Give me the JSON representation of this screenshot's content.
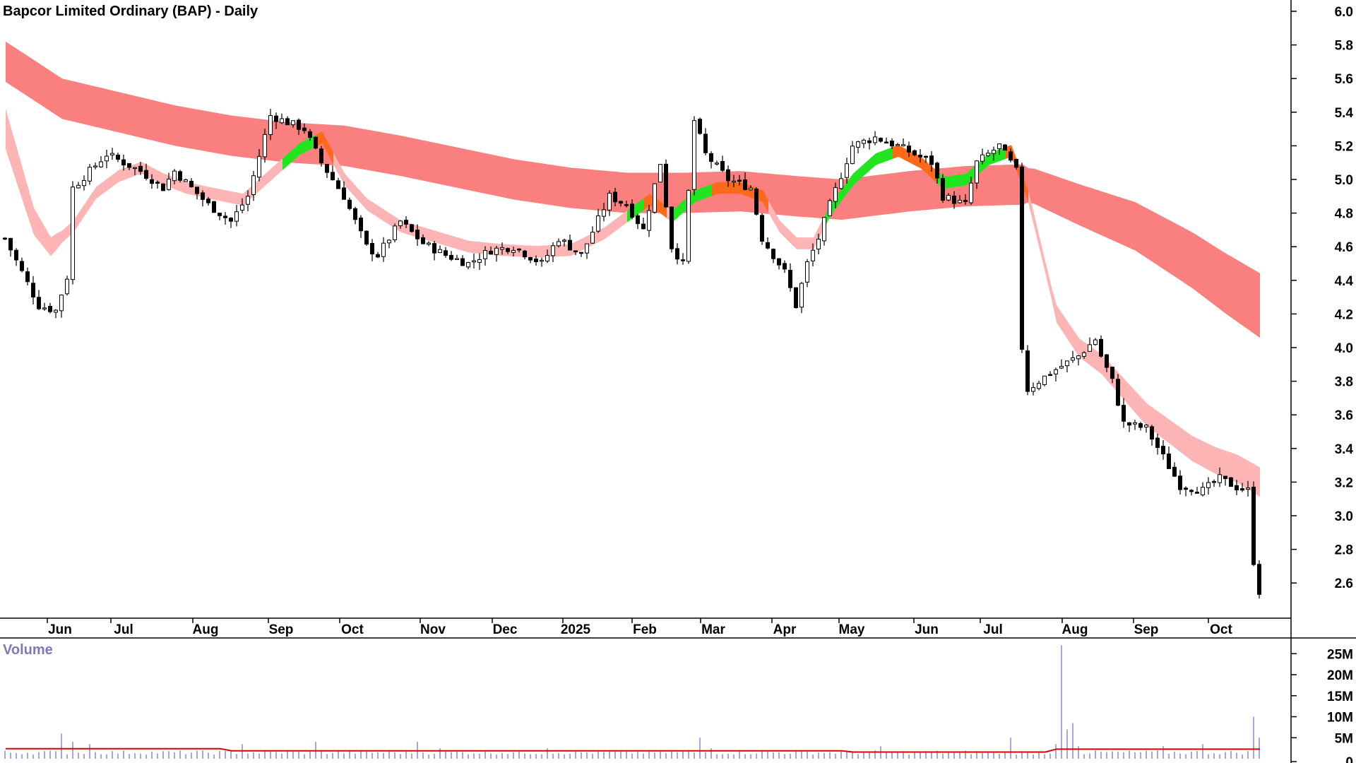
{
  "chart_data": {
    "type": "candlestick",
    "title": "Bapcor Limited Ordinary (BAP) - Daily",
    "y_axis": {
      "position": "right",
      "ticks": [
        "6.0",
        "5.8",
        "5.6",
        "5.4",
        "5.2",
        "5.0",
        "4.8",
        "4.6",
        "4.4",
        "4.2",
        "4.0",
        "3.8",
        "3.6",
        "3.4",
        "3.2",
        "3.0",
        "2.8",
        "2.6"
      ],
      "ylim": [
        2.45,
        6.05
      ]
    },
    "x_axis": {
      "ticks": [
        "Jun",
        "Jul",
        "Aug",
        "Sep",
        "Oct",
        "Nov",
        "Dec",
        "2025",
        "Feb",
        "Mar",
        "Apr",
        "May",
        "Jun",
        "Jul",
        "Aug",
        "Sep",
        "Oct"
      ]
    },
    "close_path": [
      [
        0,
        4.65
      ],
      [
        6,
        4.25
      ],
      [
        9,
        4.22
      ],
      [
        11,
        4.42
      ],
      [
        12,
        4.95
      ],
      [
        18,
        5.15
      ],
      [
        24,
        5.05
      ],
      [
        28,
        4.95
      ],
      [
        30,
        5.05
      ],
      [
        36,
        4.85
      ],
      [
        40,
        4.75
      ],
      [
        43,
        4.9
      ],
      [
        47,
        5.38
      ],
      [
        53,
        5.3
      ],
      [
        56,
        5.1
      ],
      [
        60,
        4.9
      ],
      [
        64,
        4.6
      ],
      [
        66,
        4.55
      ],
      [
        70,
        4.75
      ],
      [
        74,
        4.62
      ],
      [
        78,
        4.55
      ],
      [
        82,
        4.5
      ],
      [
        86,
        4.58
      ],
      [
        90,
        4.6
      ],
      [
        95,
        4.5
      ],
      [
        98,
        4.65
      ],
      [
        102,
        4.55
      ],
      [
        107,
        4.9
      ],
      [
        110,
        4.85
      ],
      [
        113,
        4.7
      ],
      [
        116,
        5.1
      ],
      [
        118,
        4.6
      ],
      [
        120,
        4.5
      ],
      [
        122,
        5.35
      ],
      [
        124,
        5.15
      ],
      [
        128,
        5.0
      ],
      [
        132,
        4.95
      ],
      [
        134,
        4.65
      ],
      [
        138,
        4.45
      ],
      [
        140,
        4.25
      ],
      [
        142,
        4.5
      ],
      [
        144,
        4.65
      ],
      [
        146,
        4.85
      ],
      [
        150,
        5.2
      ],
      [
        154,
        5.25
      ],
      [
        158,
        5.2
      ],
      [
        164,
        5.1
      ],
      [
        166,
        4.9
      ],
      [
        170,
        4.85
      ],
      [
        172,
        5.1
      ],
      [
        176,
        5.2
      ],
      [
        179,
        5.05
      ],
      [
        180,
        4.0
      ],
      [
        181,
        3.75
      ],
      [
        185,
        3.85
      ],
      [
        190,
        3.95
      ],
      [
        193,
        4.05
      ],
      [
        194,
        3.95
      ],
      [
        196,
        3.8
      ],
      [
        198,
        3.55
      ],
      [
        202,
        3.52
      ],
      [
        205,
        3.35
      ],
      [
        208,
        3.18
      ],
      [
        212,
        3.15
      ],
      [
        215,
        3.22
      ],
      [
        218,
        3.17
      ],
      [
        220,
        3.15
      ],
      [
        221,
        2.73
      ],
      [
        222,
        2.55
      ]
    ],
    "ma_short": [
      [
        0,
        5.3
      ],
      [
        5,
        4.75
      ],
      [
        8,
        4.6
      ],
      [
        12,
        4.72
      ],
      [
        16,
        4.92
      ],
      [
        20,
        5.02
      ],
      [
        24,
        5.07
      ],
      [
        28,
        5.0
      ],
      [
        32,
        4.95
      ],
      [
        36,
        4.92
      ],
      [
        42,
        4.88
      ],
      [
        46,
        5.0
      ],
      [
        52,
        5.18
      ],
      [
        56,
        5.25
      ],
      [
        60,
        5.0
      ],
      [
        64,
        4.85
      ],
      [
        70,
        4.72
      ],
      [
        76,
        4.66
      ],
      [
        82,
        4.6
      ],
      [
        88,
        4.58
      ],
      [
        94,
        4.57
      ],
      [
        100,
        4.58
      ],
      [
        106,
        4.68
      ],
      [
        110,
        4.78
      ],
      [
        114,
        4.88
      ],
      [
        118,
        4.78
      ],
      [
        122,
        4.9
      ],
      [
        126,
        4.95
      ],
      [
        130,
        4.95
      ],
      [
        134,
        4.9
      ],
      [
        137,
        4.72
      ],
      [
        140,
        4.62
      ],
      [
        143,
        4.62
      ],
      [
        146,
        4.82
      ],
      [
        150,
        5.0
      ],
      [
        154,
        5.12
      ],
      [
        158,
        5.17
      ],
      [
        162,
        5.1
      ],
      [
        166,
        4.98
      ],
      [
        170,
        5.0
      ],
      [
        174,
        5.12
      ],
      [
        178,
        5.17
      ],
      [
        181,
        4.9
      ],
      [
        186,
        4.2
      ],
      [
        190,
        4.0
      ],
      [
        194,
        3.9
      ],
      [
        198,
        3.75
      ],
      [
        202,
        3.6
      ],
      [
        206,
        3.5
      ],
      [
        210,
        3.4
      ],
      [
        214,
        3.33
      ],
      [
        218,
        3.28
      ],
      [
        222,
        3.2
      ]
    ],
    "ma_long": [
      [
        0,
        5.7
      ],
      [
        10,
        5.48
      ],
      [
        20,
        5.4
      ],
      [
        30,
        5.32
      ],
      [
        40,
        5.26
      ],
      [
        50,
        5.22
      ],
      [
        60,
        5.2
      ],
      [
        70,
        5.14
      ],
      [
        80,
        5.07
      ],
      [
        90,
        5.0
      ],
      [
        100,
        4.95
      ],
      [
        110,
        4.92
      ],
      [
        120,
        4.92
      ],
      [
        130,
        4.93
      ],
      [
        140,
        4.9
      ],
      [
        148,
        4.88
      ],
      [
        160,
        4.93
      ],
      [
        170,
        4.96
      ],
      [
        180,
        4.97
      ],
      [
        182,
        4.96
      ],
      [
        190,
        4.85
      ],
      [
        200,
        4.72
      ],
      [
        210,
        4.52
      ],
      [
        216,
        4.38
      ],
      [
        222,
        4.25
      ]
    ],
    "volume_panel": {
      "title": "Volume",
      "ticks": [
        "25M",
        "20M",
        "15M",
        "10M",
        "5M",
        "0"
      ],
      "spikes": [
        [
          10,
          6.0
        ],
        [
          12,
          4.0
        ],
        [
          15,
          3.5
        ],
        [
          42,
          3.5
        ],
        [
          55,
          4.0
        ],
        [
          73,
          4.0
        ],
        [
          77,
          2.5
        ],
        [
          96,
          2.5
        ],
        [
          123,
          5.0
        ],
        [
          125,
          2.5
        ],
        [
          155,
          3.0
        ],
        [
          178,
          5.0
        ],
        [
          186,
          3.5
        ],
        [
          187,
          27.0
        ],
        [
          188,
          7.0
        ],
        [
          189,
          8.5
        ],
        [
          190,
          3.0
        ],
        [
          205,
          3.0
        ],
        [
          212,
          3.5
        ],
        [
          221,
          10.0
        ],
        [
          222,
          5.0
        ]
      ]
    }
  }
}
